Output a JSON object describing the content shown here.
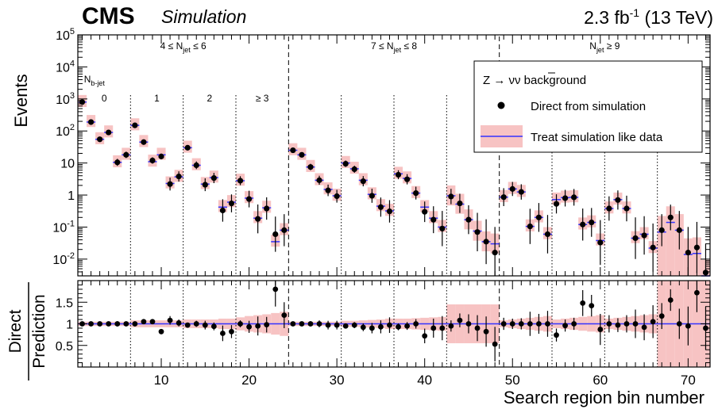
{
  "header": {
    "experiment": "CMS",
    "status": "Simulation",
    "lumi": "2.3 fb",
    "lumi_sup": "-1",
    "energy": " (13 TeV)"
  },
  "chart_data": {
    "type": "scatter",
    "xlabel": "Search region bin number",
    "top_panel": {
      "ylabel": "Events",
      "y_scale": "log",
      "ylim": [
        0.003,
        100000
      ],
      "xlim": [
        0.5,
        72.5
      ],
      "x_ticks": [
        10,
        20,
        30,
        40,
        50,
        60,
        70
      ],
      "y_ticks": [
        {
          "value": 100000,
          "base": "10",
          "exp": "5"
        },
        {
          "value": 10000,
          "base": "10",
          "exp": "4"
        },
        {
          "value": 1000,
          "base": "10",
          "exp": "3"
        },
        {
          "value": 100,
          "base": "10",
          "exp": "2"
        },
        {
          "value": 10,
          "base": "10",
          "exp": ""
        },
        {
          "value": 1,
          "base": "1",
          "exp": ""
        },
        {
          "value": 0.1,
          "base": "10",
          "exp": "-1"
        },
        {
          "value": 0.01,
          "base": "10",
          "exp": "-2"
        }
      ],
      "series": [
        {
          "name": "Direct from simulation",
          "marker": "circle",
          "color": "#000000",
          "x": [
            1,
            2,
            3,
            4,
            5,
            6,
            7,
            8,
            9,
            10,
            11,
            12,
            13,
            14,
            15,
            16,
            17,
            18,
            19,
            20,
            21,
            22,
            23,
            24,
            25,
            26,
            27,
            28,
            29,
            30,
            31,
            32,
            33,
            34,
            35,
            36,
            37,
            38,
            39,
            40,
            41,
            42,
            43,
            44,
            45,
            46,
            47,
            48,
            49,
            50,
            51,
            52,
            53,
            54,
            55,
            56,
            57,
            58,
            59,
            60,
            61,
            62,
            63,
            64,
            65,
            66,
            67,
            68,
            69,
            70,
            71,
            72
          ],
          "y": [
            800,
            190,
            55,
            90,
            10.5,
            18,
            150,
            45,
            12,
            16,
            2.2,
            3.8,
            30,
            8.5,
            2.1,
            3.4,
            0.33,
            0.55,
            2.8,
            0.75,
            0.18,
            0.38,
            0.06,
            0.08,
            25,
            18,
            7.5,
            2.9,
            1.4,
            0.92,
            9.5,
            6.4,
            2.7,
            0.95,
            0.42,
            0.31,
            4.3,
            3.1,
            1.15,
            0.3,
            0.17,
            0.09,
            0.9,
            0.55,
            0.17,
            0.07,
            0.035,
            0.016,
            0.86,
            1.55,
            1.25,
            0.105,
            0.2,
            0.06,
            0.53,
            0.8,
            0.85,
            0.12,
            0.14,
            0.033,
            0.38,
            0.7,
            0.38,
            0.045,
            0.055,
            0.023,
            0.08,
            0.2,
            0.08,
            0.016,
            0.023,
            0.0038
          ],
          "yerr_up": [
            0.04,
            0.06,
            0.08,
            0.07,
            0.11,
            0.1,
            0.05,
            0.07,
            0.1,
            0.09,
            0.2,
            0.16,
            0.08,
            0.12,
            0.2,
            0.16,
            0.35,
            0.28,
            0.14,
            0.26,
            0.45,
            0.35,
            0.55,
            0.5,
            0.07,
            0.08,
            0.1,
            0.14,
            0.18,
            0.2,
            0.1,
            0.11,
            0.16,
            0.22,
            0.3,
            0.35,
            0.14,
            0.16,
            0.2,
            0.32,
            0.42,
            0.55,
            0.24,
            0.3,
            0.45,
            0.6,
            0.7,
            0.8,
            0.28,
            0.22,
            0.24,
            0.55,
            0.45,
            0.6,
            0.3,
            0.26,
            0.26,
            0.5,
            0.45,
            0.7,
            0.38,
            0.3,
            0.4,
            0.65,
            0.6,
            0.75,
            0.5,
            0.4,
            0.6,
            0.8,
            0.8,
            0.9
          ],
          "yerr_down": [
            0.04,
            0.06,
            0.08,
            0.07,
            0.11,
            0.1,
            0.05,
            0.07,
            0.1,
            0.09,
            0.2,
            0.16,
            0.08,
            0.12,
            0.2,
            0.16,
            0.35,
            0.28,
            0.14,
            0.26,
            0.45,
            0.35,
            0.55,
            0.5,
            0.07,
            0.08,
            0.1,
            0.14,
            0.18,
            0.2,
            0.1,
            0.11,
            0.16,
            0.22,
            0.3,
            0.35,
            0.14,
            0.16,
            0.2,
            0.32,
            0.42,
            0.55,
            0.24,
            0.3,
            0.45,
            0.6,
            0.7,
            0.8,
            0.28,
            0.22,
            0.24,
            0.55,
            0.45,
            0.6,
            0.3,
            0.26,
            0.26,
            0.5,
            0.45,
            0.7,
            0.38,
            0.3,
            0.4,
            0.65,
            0.6,
            0.75,
            0.5,
            0.4,
            0.6,
            0.8,
            0.8,
            0.9
          ]
        },
        {
          "name": "Treat simulation like data",
          "marker": "line-with-band",
          "color": "#3333ff",
          "band_color": "#f7c3c3",
          "x": [
            1,
            2,
            3,
            4,
            5,
            6,
            7,
            8,
            9,
            10,
            11,
            12,
            13,
            14,
            15,
            16,
            17,
            18,
            19,
            20,
            21,
            22,
            23,
            24,
            25,
            26,
            27,
            28,
            29,
            30,
            31,
            32,
            33,
            34,
            35,
            36,
            37,
            38,
            39,
            40,
            41,
            42,
            43,
            44,
            45,
            46,
            47,
            48,
            49,
            50,
            51,
            52,
            53,
            54,
            55,
            56,
            57,
            58,
            59,
            60,
            61,
            62,
            63,
            64,
            65,
            66,
            67,
            68,
            69,
            70,
            71,
            72
          ],
          "y": [
            800,
            190,
            55,
            90,
            10.5,
            18,
            150,
            45,
            11,
            18,
            2.3,
            3.7,
            30,
            8.5,
            2.2,
            3.5,
            0.42,
            0.6,
            2.8,
            0.8,
            0.19,
            0.4,
            0.035,
            0.08,
            25,
            18,
            7.5,
            2.9,
            1.5,
            0.95,
            10,
            6.6,
            2.9,
            1.05,
            0.45,
            0.32,
            4.6,
            3.3,
            1.15,
            0.42,
            0.19,
            0.1,
            0.95,
            0.52,
            0.17,
            0.075,
            0.035,
            0.03,
            0.86,
            1.55,
            1.25,
            0.105,
            0.2,
            0.06,
            0.72,
            0.83,
            0.85,
            0.12,
            0.14,
            0.038,
            0.38,
            0.72,
            0.38,
            0.045,
            0.06,
            0.022,
            0.07,
            0.14,
            0.08,
            0.014,
            0.015,
            0.003
          ],
          "band_frac": [
            0.3,
            0.3,
            0.3,
            0.3,
            0.3,
            0.3,
            0.3,
            0.3,
            0.3,
            0.3,
            0.3,
            0.3,
            0.3,
            0.3,
            0.3,
            0.3,
            0.3,
            0.3,
            0.3,
            0.3,
            0.3,
            0.3,
            0.3,
            0.3,
            0.3,
            0.3,
            0.3,
            0.3,
            0.3,
            0.3,
            0.3,
            0.3,
            0.3,
            0.3,
            0.3,
            0.3,
            0.3,
            0.3,
            0.3,
            0.3,
            0.3,
            0.3,
            0.5,
            0.5,
            0.5,
            0.5,
            0.5,
            0.5,
            0.3,
            0.3,
            0.3,
            0.3,
            0.3,
            0.3,
            0.3,
            0.3,
            0.3,
            0.3,
            0.3,
            0.3,
            0.3,
            0.3,
            0.3,
            0.3,
            0.3,
            0.3,
            0.99,
            0.99,
            0.99,
            0.99,
            0.99,
            0.99
          ]
        }
      ]
    },
    "ratio_panel": {
      "ylabel_top": "Direct",
      "ylabel_bottom": "Prediction",
      "ylim": [
        0,
        2
      ],
      "y_ticks": [
        0.5,
        1,
        1.5
      ],
      "ratio": [
        1.0,
        1.0,
        1.0,
        1.0,
        1.0,
        1.0,
        1.0,
        1.05,
        1.05,
        0.82,
        1.08,
        1.02,
        0.97,
        1.0,
        0.97,
        0.94,
        0.78,
        0.82,
        1.0,
        0.93,
        0.95,
        0.98,
        1.8,
        1.2,
        1.0,
        1.0,
        1.0,
        1.0,
        0.97,
        0.97,
        0.95,
        0.97,
        0.92,
        0.9,
        0.93,
        0.97,
        0.93,
        0.95,
        1.0,
        0.72,
        0.9,
        0.9,
        0.95,
        1.08,
        1.0,
        0.9,
        0.82,
        0.53,
        1.0,
        1.0,
        1.0,
        1.0,
        1.0,
        1.0,
        0.74,
        0.96,
        1.0,
        1.48,
        1.42,
        0.87,
        1.0,
        0.97,
        1.0,
        1.0,
        0.92,
        1.05,
        1.18,
        1.55,
        1.0,
        0.95,
        1.72,
        0.9
      ],
      "ratio_err": [
        0.02,
        0.03,
        0.04,
        0.04,
        0.06,
        0.05,
        0.03,
        0.04,
        0.06,
        0.06,
        0.1,
        0.08,
        0.05,
        0.07,
        0.1,
        0.09,
        0.18,
        0.15,
        0.08,
        0.14,
        0.22,
        0.18,
        0.4,
        0.3,
        0.04,
        0.05,
        0.06,
        0.08,
        0.1,
        0.1,
        0.06,
        0.07,
        0.09,
        0.12,
        0.15,
        0.18,
        0.08,
        0.09,
        0.11,
        0.17,
        0.22,
        0.28,
        0.13,
        0.16,
        0.22,
        0.3,
        0.35,
        0.4,
        0.14,
        0.12,
        0.13,
        0.28,
        0.23,
        0.3,
        0.15,
        0.14,
        0.14,
        0.3,
        0.25,
        0.36,
        0.2,
        0.16,
        0.2,
        0.33,
        0.3,
        0.38,
        0.3,
        0.25,
        0.35,
        0.45,
        0.45,
        0.5
      ],
      "band_frac": [
        0.05,
        0.05,
        0.05,
        0.05,
        0.05,
        0.05,
        0.08,
        0.08,
        0.08,
        0.08,
        0.08,
        0.08,
        0.1,
        0.1,
        0.1,
        0.1,
        0.12,
        0.12,
        0.15,
        0.18,
        0.2,
        0.22,
        0.25,
        0.28,
        0.05,
        0.05,
        0.05,
        0.05,
        0.05,
        0.05,
        0.07,
        0.07,
        0.08,
        0.09,
        0.1,
        0.12,
        0.12,
        0.12,
        0.13,
        0.14,
        0.15,
        0.16,
        0.45,
        0.45,
        0.45,
        0.45,
        0.45,
        0.45,
        0.08,
        0.1,
        0.12,
        0.14,
        0.16,
        0.18,
        0.1,
        0.12,
        0.14,
        0.16,
        0.18,
        0.2,
        0.12,
        0.14,
        0.16,
        0.18,
        0.2,
        0.22,
        0.99,
        0.99,
        0.99,
        0.99,
        0.99,
        0.99
      ]
    },
    "legend": {
      "placement": "top-right",
      "title": "Z → νν background",
      "entries": [
        "Direct from simulation",
        "Treat simulation like data"
      ]
    },
    "region_labels": [
      {
        "text": "4 ≤ N",
        "sub": "jet",
        "tail": " ≤ 6",
        "x": 12.5
      },
      {
        "text": "7 ≤ N",
        "sub": "jet",
        "tail": " ≤ 8",
        "x": 36.5
      },
      {
        "text": "N",
        "sub": "jet",
        "tail": " ≥ 9",
        "x": 60.5
      }
    ],
    "bjet_header": {
      "text": "N",
      "sub": "b-jet"
    },
    "bjet_labels": [
      {
        "text": "0",
        "x": 3.5
      },
      {
        "text": "1",
        "x": 9.5
      },
      {
        "text": "2",
        "x": 15.5
      },
      {
        "text": "≥ 3",
        "x": 21.5
      }
    ],
    "dashed_lines_x": [
      24.5,
      48.5
    ],
    "dotted_lines_x": [
      6.5,
      12.5,
      18.5,
      30.5,
      36.5,
      42.5,
      54.5,
      60.5,
      66.5
    ]
  }
}
